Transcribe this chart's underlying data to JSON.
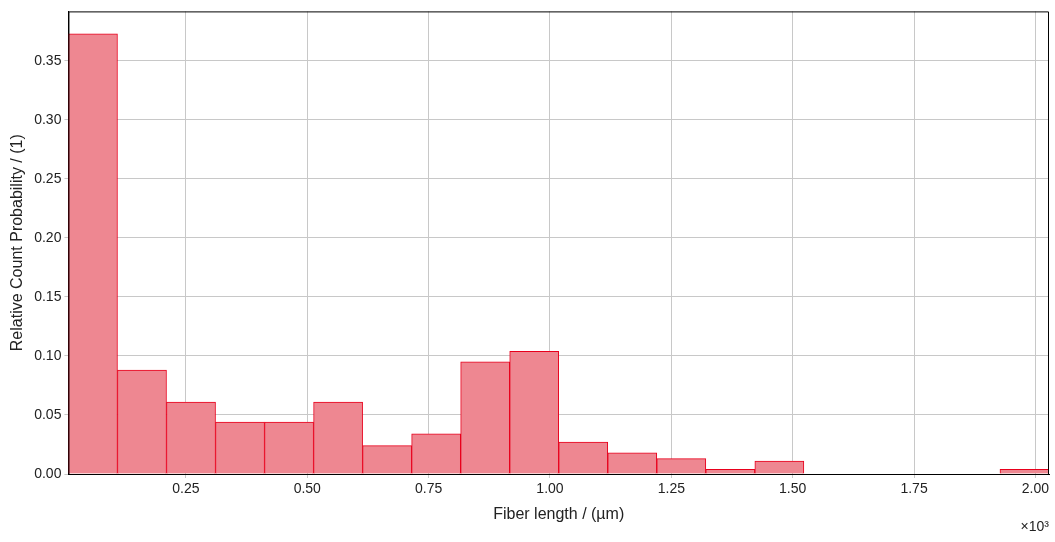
{
  "chart_data": {
    "type": "histogram",
    "xlabel": "Fiber length / (µm)",
    "ylabel": "Relative Count Probability / (1)",
    "bins": [
      0.008,
      0.109,
      0.21,
      0.311,
      0.412,
      0.513,
      0.614,
      0.715,
      0.816,
      0.917,
      1.018,
      1.119,
      1.22,
      1.321,
      1.422,
      1.523,
      1.624,
      1.725,
      1.826,
      1.927,
      2.028
    ],
    "values": [
      0.373,
      0.088,
      0.061,
      0.044,
      0.044,
      0.061,
      0.024,
      0.034,
      0.095,
      0.104,
      0.027,
      0.018,
      0.013,
      0.004,
      0.011,
      0,
      0,
      0,
      0,
      0.004
    ],
    "color": "#ee8791",
    "xlim": [
      0.008,
      2.028
    ],
    "xticks": [
      {
        "value": 0.25,
        "label": "0.25"
      },
      {
        "value": 0.5,
        "label": "0.50"
      },
      {
        "value": 0.75,
        "label": "0.75"
      },
      {
        "value": 1,
        "label": "1.00"
      },
      {
        "value": 1.25,
        "label": "1.25"
      },
      {
        "value": 1.5,
        "label": "1.50"
      },
      {
        "value": 1.75,
        "label": "1.75"
      },
      {
        "value": 2,
        "label": "2.00"
      }
    ],
    "ylim": [
      0,
      0.392
    ],
    "yticks": [
      {
        "value": 0,
        "label": "0.00"
      },
      {
        "value": 0.05,
        "label": "0.05"
      },
      {
        "value": 0.1,
        "label": "0.10"
      },
      {
        "value": 0.15,
        "label": "0.15"
      },
      {
        "value": 0.2,
        "label": "0.20"
      },
      {
        "value": 0.25,
        "label": "0.25"
      },
      {
        "value": 0.3,
        "label": "0.30"
      },
      {
        "value": 0.35,
        "label": "0.35"
      }
    ],
    "grid": true,
    "annotations": [
      "×10³"
    ]
  }
}
